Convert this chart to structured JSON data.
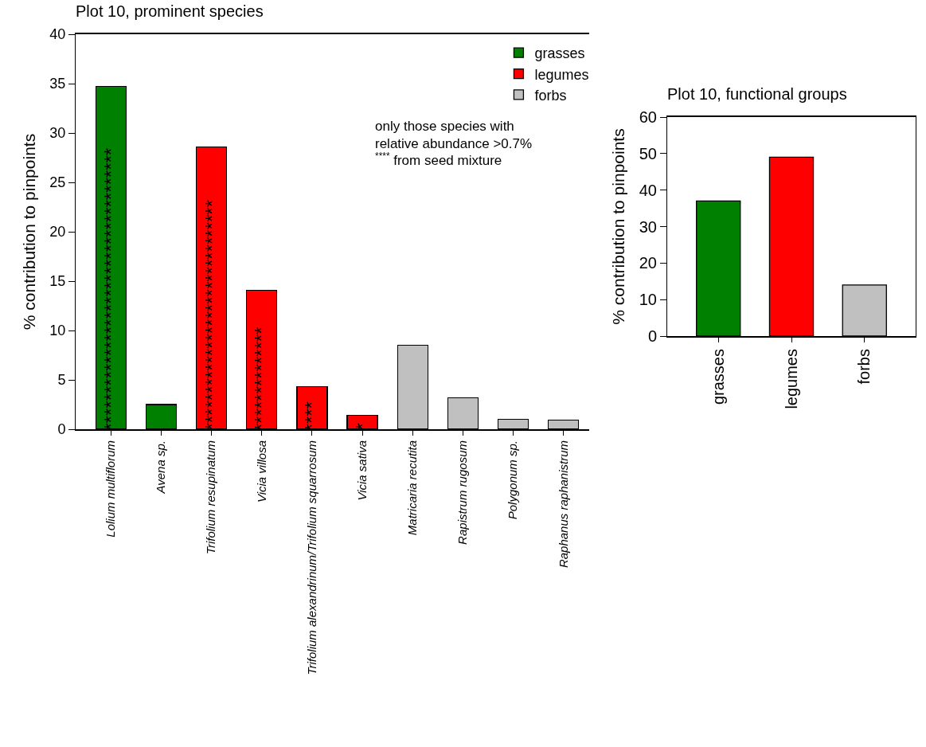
{
  "chart_data": [
    {
      "type": "bar",
      "title": "Plot 10, prominent species",
      "ylabel": "% contribution to pinpoints",
      "categories": [
        "Lolium multiflorum",
        "Avena sp.",
        "Trifolium resupinatum",
        "Vicia villosa",
        "Trifolium alexandrinum/Trifolium squarrosum",
        "Vicia sativa",
        "Matricaria recutita",
        "Rapistrum rugosum",
        "Polygonum sp.",
        "Raphanus raphanistrum"
      ],
      "series": [
        {
          "name": "grasses",
          "color": "#008000",
          "values": [
            34.7,
            2.5,
            null,
            null,
            null,
            null,
            null,
            null,
            null,
            null
          ],
          "value_labels": [
            "**************************************",
            null,
            null,
            null,
            null,
            null,
            null,
            null,
            null,
            null
          ]
        },
        {
          "name": "legumes",
          "color": "#ff0000",
          "values": [
            null,
            null,
            28.6,
            14.1,
            4.3,
            1.4,
            null,
            null,
            null,
            null
          ],
          "value_labels": [
            null,
            null,
            "*******************************",
            "**************",
            "****",
            "*",
            null,
            null,
            null,
            null
          ]
        },
        {
          "name": "forbs",
          "color": "#c0c0c0",
          "values": [
            null,
            null,
            null,
            null,
            null,
            null,
            8.5,
            3.2,
            1.0,
            0.9
          ]
        }
      ],
      "stacked": true,
      "ylim": [
        0,
        40
      ],
      "yticks": [
        0,
        5,
        10,
        15,
        20,
        25,
        30,
        35,
        40
      ],
      "grid": false,
      "legend": "top right",
      "annotations": [
        "only those species with\nrelative abundance >0.7%",
        "$^{****}$ from seed mixture"
      ]
    },
    {
      "type": "bar",
      "title": "Plot 10, functional groups",
      "ylabel": "% contribution to pinpoints",
      "categories": [
        "grasses",
        "legumes",
        "forbs"
      ],
      "values": [
        37,
        49,
        14
      ],
      "colors": [
        "#008000",
        "#ff0000",
        "#c0c0c0"
      ],
      "ylim": [
        0,
        60
      ],
      "yticks": [
        0,
        10,
        20,
        30,
        40,
        50,
        60
      ],
      "grid": false,
      "legend": false
    }
  ]
}
